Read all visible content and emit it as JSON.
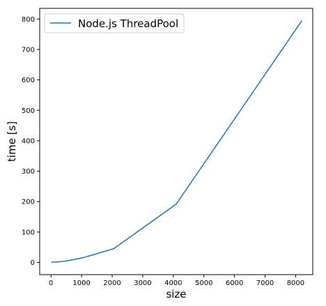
{
  "chart_data": {
    "type": "line",
    "title": "",
    "xlabel": "size",
    "ylabel": "time [s]",
    "xlim": [
      -370,
      8560
    ],
    "ylim": [
      -40,
      835
    ],
    "xticks": [
      0,
      1000,
      2000,
      3000,
      4000,
      5000,
      6000,
      7000,
      8000
    ],
    "yticks": [
      0,
      100,
      200,
      300,
      400,
      500,
      600,
      700,
      800
    ],
    "grid": false,
    "legend_position": "top-left",
    "series": [
      {
        "name": "Node.js ThreadPool",
        "color": "#1f77b4",
        "x": [
          32,
          256,
          512,
          1024,
          2048,
          4096,
          8192
        ],
        "y": [
          1,
          2,
          5,
          15,
          45,
          192,
          793
        ]
      }
    ]
  }
}
